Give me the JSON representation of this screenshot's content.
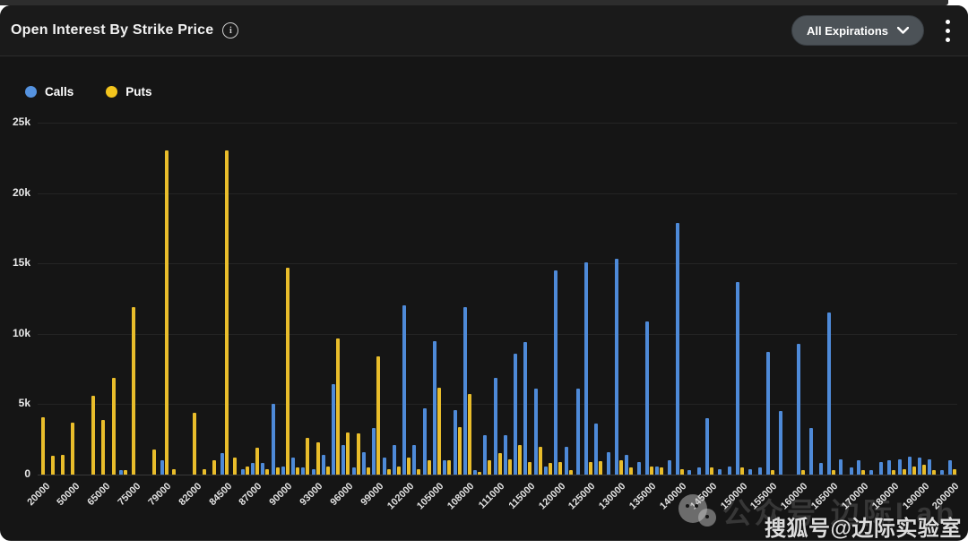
{
  "header": {
    "title": "Open Interest By Strike Price",
    "expirations_label": "All Expirations"
  },
  "legend": [
    {
      "label": "Calls",
      "color": "#5593e0"
    },
    {
      "label": "Puts",
      "color": "#f3c51d"
    }
  ],
  "watermarks": {
    "ghost": "公众号 边际Lab",
    "main": "搜狐号@边际实验室"
  },
  "chart_data": {
    "type": "bar",
    "title": "Open Interest By Strike Price",
    "xlabel": "",
    "ylabel": "",
    "ylim": [
      0,
      25000
    ],
    "yticks": [
      "0",
      "5k",
      "10k",
      "15k",
      "20k",
      "25k"
    ],
    "grid": true,
    "legend_position": "top-left",
    "series_names": [
      "Calls",
      "Puts"
    ],
    "colors": {
      "calls": "#4e8ad8",
      "puts": "#e9bd2b"
    },
    "columns": [
      "strike",
      "calls_oi",
      "puts_oi"
    ],
    "groups": [
      [
        "20000",
        0,
        4100
      ],
      [
        "",
        0,
        1350
      ],
      [
        "",
        0,
        1400
      ],
      [
        "50000",
        0,
        3700
      ],
      [
        "",
        0,
        0
      ],
      [
        "",
        0,
        5600
      ],
      [
        "65000",
        0,
        3900
      ],
      [
        "",
        0,
        6900
      ],
      [
        "",
        300,
        300
      ],
      [
        "75000",
        0,
        11900
      ],
      [
        "",
        0,
        0
      ],
      [
        "",
        0,
        1750
      ],
      [
        "79000",
        1000,
        23000
      ],
      [
        "",
        0,
        400
      ],
      [
        "",
        0,
        0
      ],
      [
        "82000",
        0,
        4400
      ],
      [
        "",
        0,
        400
      ],
      [
        "",
        0,
        1000
      ],
      [
        "84500",
        1500,
        23000
      ],
      [
        "",
        0,
        1200
      ],
      [
        "",
        400,
        600
      ],
      [
        "87000",
        800,
        1900
      ],
      [
        "",
        800,
        400
      ],
      [
        "",
        5000,
        500
      ],
      [
        "90000",
        600,
        14700
      ],
      [
        "",
        1200,
        500
      ],
      [
        "",
        500,
        2600
      ],
      [
        "93000",
        400,
        2300
      ],
      [
        "",
        1400,
        600
      ],
      [
        "",
        6400,
        9700
      ],
      [
        "96000",
        2100,
        3000
      ],
      [
        "",
        500,
        2900
      ],
      [
        "",
        1600,
        500
      ],
      [
        "99000",
        3300,
        8400
      ],
      [
        "",
        1200,
        400
      ],
      [
        "",
        2100,
        600
      ],
      [
        "102000",
        12000,
        1200
      ],
      [
        "",
        2100,
        400
      ],
      [
        "",
        4700,
        1000
      ],
      [
        "105000",
        9500,
        6200
      ],
      [
        "",
        1000,
        1000
      ],
      [
        "",
        4600,
        3400
      ],
      [
        "108000",
        11900,
        5700
      ],
      [
        "",
        300,
        200
      ],
      [
        "",
        2800,
        1000
      ],
      [
        "111000",
        6900,
        1500
      ],
      [
        "",
        2800,
        1050
      ],
      [
        "",
        8600,
        2100
      ],
      [
        "115000",
        9400,
        900
      ],
      [
        "",
        6100,
        2000
      ],
      [
        "",
        600,
        850
      ],
      [
        "120000",
        14500,
        900
      ],
      [
        "",
        2000,
        300
      ],
      [
        "",
        6100,
        0
      ],
      [
        "125000",
        15100,
        900
      ],
      [
        "",
        3600,
        950
      ],
      [
        "",
        1600,
        0
      ],
      [
        "130000",
        15300,
        1000
      ],
      [
        "",
        1400,
        500
      ],
      [
        "",
        900,
        0
      ],
      [
        "135000",
        10900,
        600
      ],
      [
        "",
        600,
        500
      ],
      [
        "",
        1000,
        0
      ],
      [
        "140000",
        17900,
        400
      ],
      [
        "",
        300,
        0
      ],
      [
        "",
        500,
        0
      ],
      [
        "145000",
        4000,
        500
      ],
      [
        "",
        400,
        0
      ],
      [
        "",
        600,
        0
      ],
      [
        "150000",
        13700,
        500
      ],
      [
        "",
        400,
        0
      ],
      [
        "",
        500,
        0
      ],
      [
        "155000",
        8700,
        300
      ],
      [
        "",
        4500,
        0
      ],
      [
        "",
        0,
        0
      ],
      [
        "160000",
        9300,
        300
      ],
      [
        "",
        3300,
        0
      ],
      [
        "",
        800,
        0
      ],
      [
        "165000",
        11500,
        300
      ],
      [
        "",
        1050,
        0
      ],
      [
        "",
        500,
        0
      ],
      [
        "170000",
        1000,
        300
      ],
      [
        "",
        300,
        0
      ],
      [
        "",
        900,
        0
      ],
      [
        "180000",
        1000,
        300
      ],
      [
        "",
        1100,
        400
      ],
      [
        "",
        1300,
        600
      ],
      [
        "190000",
        1200,
        700
      ],
      [
        "",
        1100,
        300
      ],
      [
        "",
        300,
        0
      ],
      [
        "200000",
        1000,
        400
      ]
    ]
  }
}
